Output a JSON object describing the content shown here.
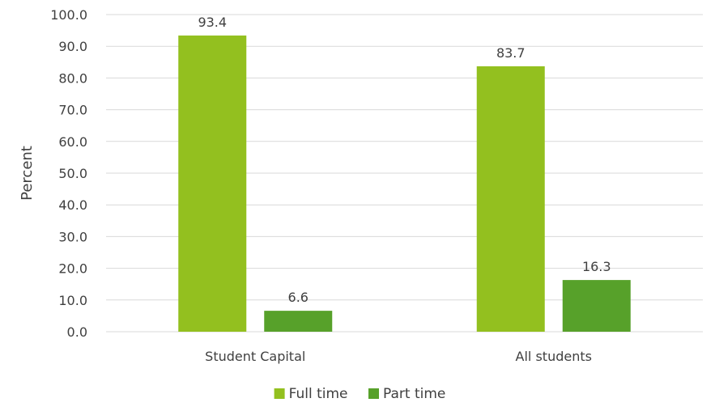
{
  "chart_data": {
    "type": "bar",
    "categories": [
      "Student Capital",
      "All students"
    ],
    "series": [
      {
        "name": "Full time",
        "values": [
          93.4,
          83.7
        ],
        "color": "#93c01f"
      },
      {
        "name": "Part time",
        "values": [
          6.6,
          16.3
        ],
        "color": "#57a12a"
      }
    ],
    "title": "",
    "xlabel": "",
    "ylabel": "Percent",
    "ylim": [
      0,
      100
    ],
    "yticks": [
      0,
      10,
      20,
      30,
      40,
      50,
      60,
      70,
      80,
      90,
      100
    ],
    "ytick_format_decimals": 1,
    "data_labels": true,
    "grid": true,
    "legend_position": "bottom",
    "gridline_color": "#d9d9d9"
  }
}
